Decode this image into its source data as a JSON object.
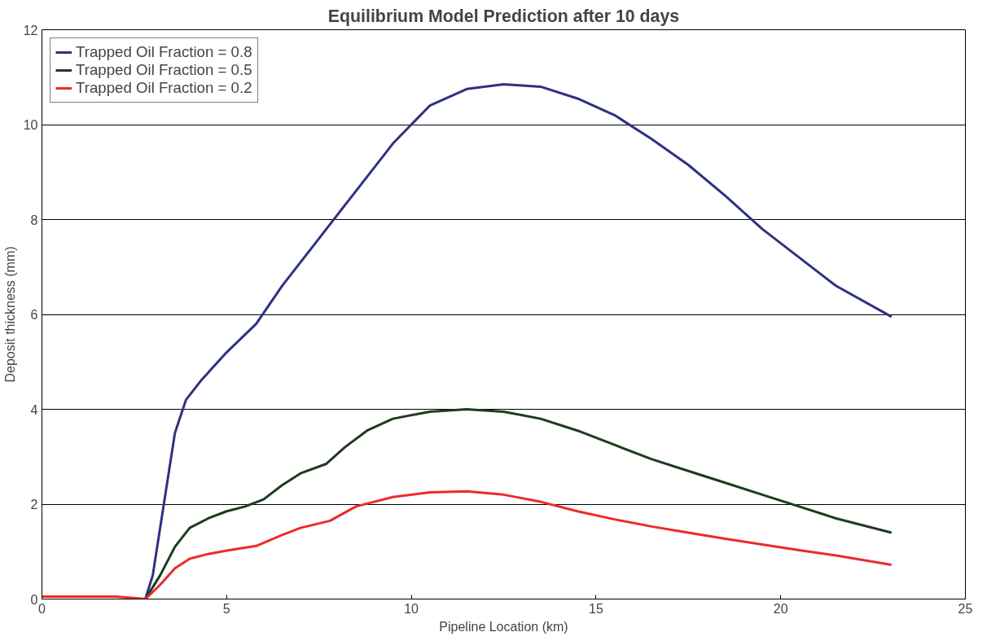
{
  "chart_data": {
    "type": "line",
    "title": "Equilibrium Model Prediction after 10 days",
    "xlabel": "Pipeline Location (km)",
    "ylabel": "Deposit thickness (mm)",
    "xlim": [
      0,
      25
    ],
    "xticks": [
      0,
      5,
      10,
      15,
      20,
      25
    ],
    "ylim": [
      0,
      12
    ],
    "yticks": [
      0,
      2,
      4,
      6,
      8,
      10,
      12
    ],
    "grid": "y",
    "legend": "top left",
    "line_style": "solid",
    "marker": "none",
    "series": [
      {
        "name": "Trapped Oil Fraction = 0.8",
        "color": "#2e3182",
        "x": [
          2.8,
          3.0,
          3.3,
          3.6,
          3.9,
          4.3,
          5,
          5.8,
          6.5,
          7.5,
          8.5,
          9.5,
          10.5,
          11.5,
          12.5,
          13.5,
          14.5,
          15.5,
          16.5,
          17.5,
          18.5,
          19.5,
          20.5,
          21.5,
          23
        ],
        "values": [
          0,
          0.5,
          2,
          3.5,
          4.2,
          4.6,
          5.2,
          5.8,
          6.6,
          7.6,
          8.6,
          9.6,
          10.4,
          10.75,
          10.85,
          10.8,
          10.55,
          10.2,
          9.7,
          9.15,
          8.5,
          7.8,
          7.2,
          6.6,
          5.95
        ]
      },
      {
        "name": "Trapped Oil Fraction = 0.5",
        "color": "#1f3a1f",
        "x": [
          2.8,
          3.2,
          3.6,
          4,
          4.5,
          5,
          5.5,
          6,
          6.5,
          7,
          7.7,
          8.2,
          8.8,
          9.5,
          10.5,
          11.5,
          12.5,
          13.5,
          14.5,
          15.5,
          16.5,
          17.5,
          18.5,
          19.5,
          20.5,
          21.5,
          23
        ],
        "values": [
          0,
          0.5,
          1.1,
          1.5,
          1.7,
          1.85,
          1.95,
          2.1,
          2.4,
          2.65,
          2.85,
          3.2,
          3.55,
          3.8,
          3.95,
          4.0,
          3.95,
          3.8,
          3.55,
          3.25,
          2.95,
          2.7,
          2.45,
          2.2,
          1.95,
          1.7,
          1.4
        ]
      },
      {
        "name": "Trapped Oil Fraction = 0.2",
        "color": "#ee2a2a",
        "x": [
          0,
          2,
          2.5,
          2.8,
          3.2,
          3.6,
          4,
          4.5,
          5,
          5.8,
          6.5,
          7,
          7.8,
          8.5,
          9.5,
          10.5,
          11.5,
          12.5,
          13.5,
          14.5,
          15.5,
          16.5,
          17.5,
          18.5,
          19.5,
          20.5,
          21.5,
          23
        ],
        "values": [
          0.05,
          0.05,
          0.02,
          0,
          0.3,
          0.65,
          0.85,
          0.95,
          1.02,
          1.12,
          1.35,
          1.5,
          1.65,
          1.95,
          2.15,
          2.25,
          2.27,
          2.2,
          2.05,
          1.85,
          1.68,
          1.53,
          1.4,
          1.27,
          1.15,
          1.03,
          0.92,
          0.72
        ]
      }
    ]
  }
}
